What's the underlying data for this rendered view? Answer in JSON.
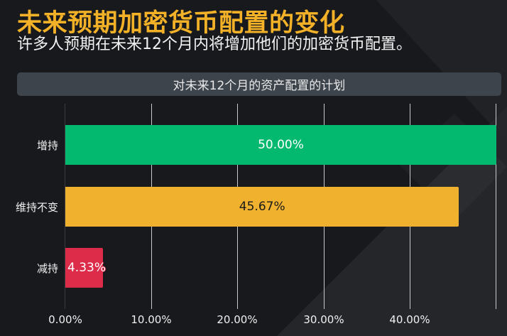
{
  "header": {
    "title": "未来预期加密货币配置的变化",
    "subtitle": "许多人预期在未来12个月内将增加他们的加密货币配置。"
  },
  "chart": {
    "panel_title": "对未来12个月的资产配置的计划",
    "background_color": "#1b1d21",
    "panel_color": "#3d444c",
    "title_color": "#f3b128"
  },
  "chart_data": {
    "type": "bar",
    "orientation": "horizontal",
    "title": "对未来12个月的资产配置的计划",
    "xlabel": "",
    "ylabel": "",
    "categories": [
      "增持",
      "维持不变",
      "减持"
    ],
    "values": [
      50.0,
      45.67,
      4.33
    ],
    "value_labels": [
      "50.00%",
      "45.67%",
      "4.33%"
    ],
    "colors": [
      "#03b96f",
      "#f0b22e",
      "#dc2c4a"
    ],
    "label_colors": [
      "#ffffff",
      "#1a1a1a",
      "#ffffff"
    ],
    "x_ticks": [
      "0.00%",
      "10.00%",
      "20.00%",
      "30.00%",
      "40.00%"
    ],
    "xlim": [
      0,
      50
    ],
    "grid": true,
    "legend": null
  }
}
